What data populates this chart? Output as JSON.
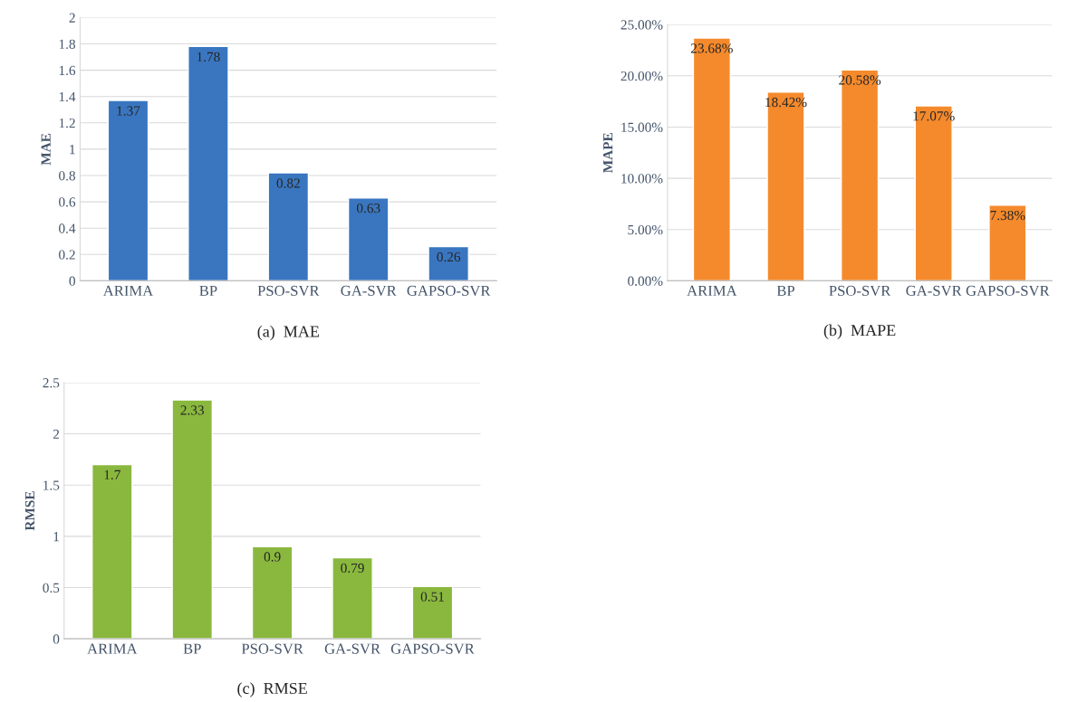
{
  "chart_data": [
    {
      "type": "bar",
      "ylabel": "MAE",
      "categories": [
        "ARIMA",
        "BP",
        "PSO-SVR",
        "GA-SVR",
        "GAPSO-SVR"
      ],
      "values": [
        1.37,
        1.78,
        0.82,
        0.63,
        0.26
      ],
      "color": "#3a76c0",
      "ylim": [
        0,
        2
      ],
      "yticks": [
        0,
        0.2,
        0.4,
        0.6,
        0.8,
        1,
        1.2,
        1.4,
        1.6,
        1.8,
        2
      ],
      "grid": "y",
      "data_labels": true,
      "annotations": [
        "(a)  MAE"
      ]
    },
    {
      "type": "bar",
      "ylabel": "MAPE",
      "categories": [
        "ARIMA",
        "BP",
        "PSO-SVR",
        "GA-SVR",
        "GAPSO-SVR"
      ],
      "values": [
        23.68,
        18.42,
        20.58,
        17.07,
        7.38
      ],
      "color": "#f58a2c",
      "ylim": [
        0,
        25
      ],
      "yticks": [
        {
          "value": 0,
          "label": "0.00%"
        },
        {
          "value": 5,
          "label": "5.00%"
        },
        {
          "value": 10,
          "label": "10.00%"
        },
        {
          "value": 15,
          "label": "15.00%"
        },
        {
          "value": 20,
          "label": "20.00%"
        },
        {
          "value": 25,
          "label": "25.00%"
        }
      ],
      "grid": "y",
      "value_labels": [
        "23.68%",
        "18.42%",
        "20.58%",
        "17.07%",
        "7.38%"
      ],
      "annotations": [
        "(b)  MAPE"
      ]
    },
    {
      "type": "bar",
      "ylabel": "RMSE",
      "categories": [
        "ARIMA",
        "BP",
        "PSO-SVR",
        "GA-SVR",
        "GAPSO-SVR"
      ],
      "values": [
        1.7,
        2.33,
        0.9,
        0.79,
        0.51
      ],
      "color": "#8ab83e",
      "ylim": [
        0,
        2.5
      ],
      "yticks": [
        0,
        0.5,
        1,
        1.5,
        2,
        2.5
      ],
      "grid": "y",
      "data_labels": true,
      "annotations": [
        "(c)  RMSE"
      ]
    }
  ]
}
